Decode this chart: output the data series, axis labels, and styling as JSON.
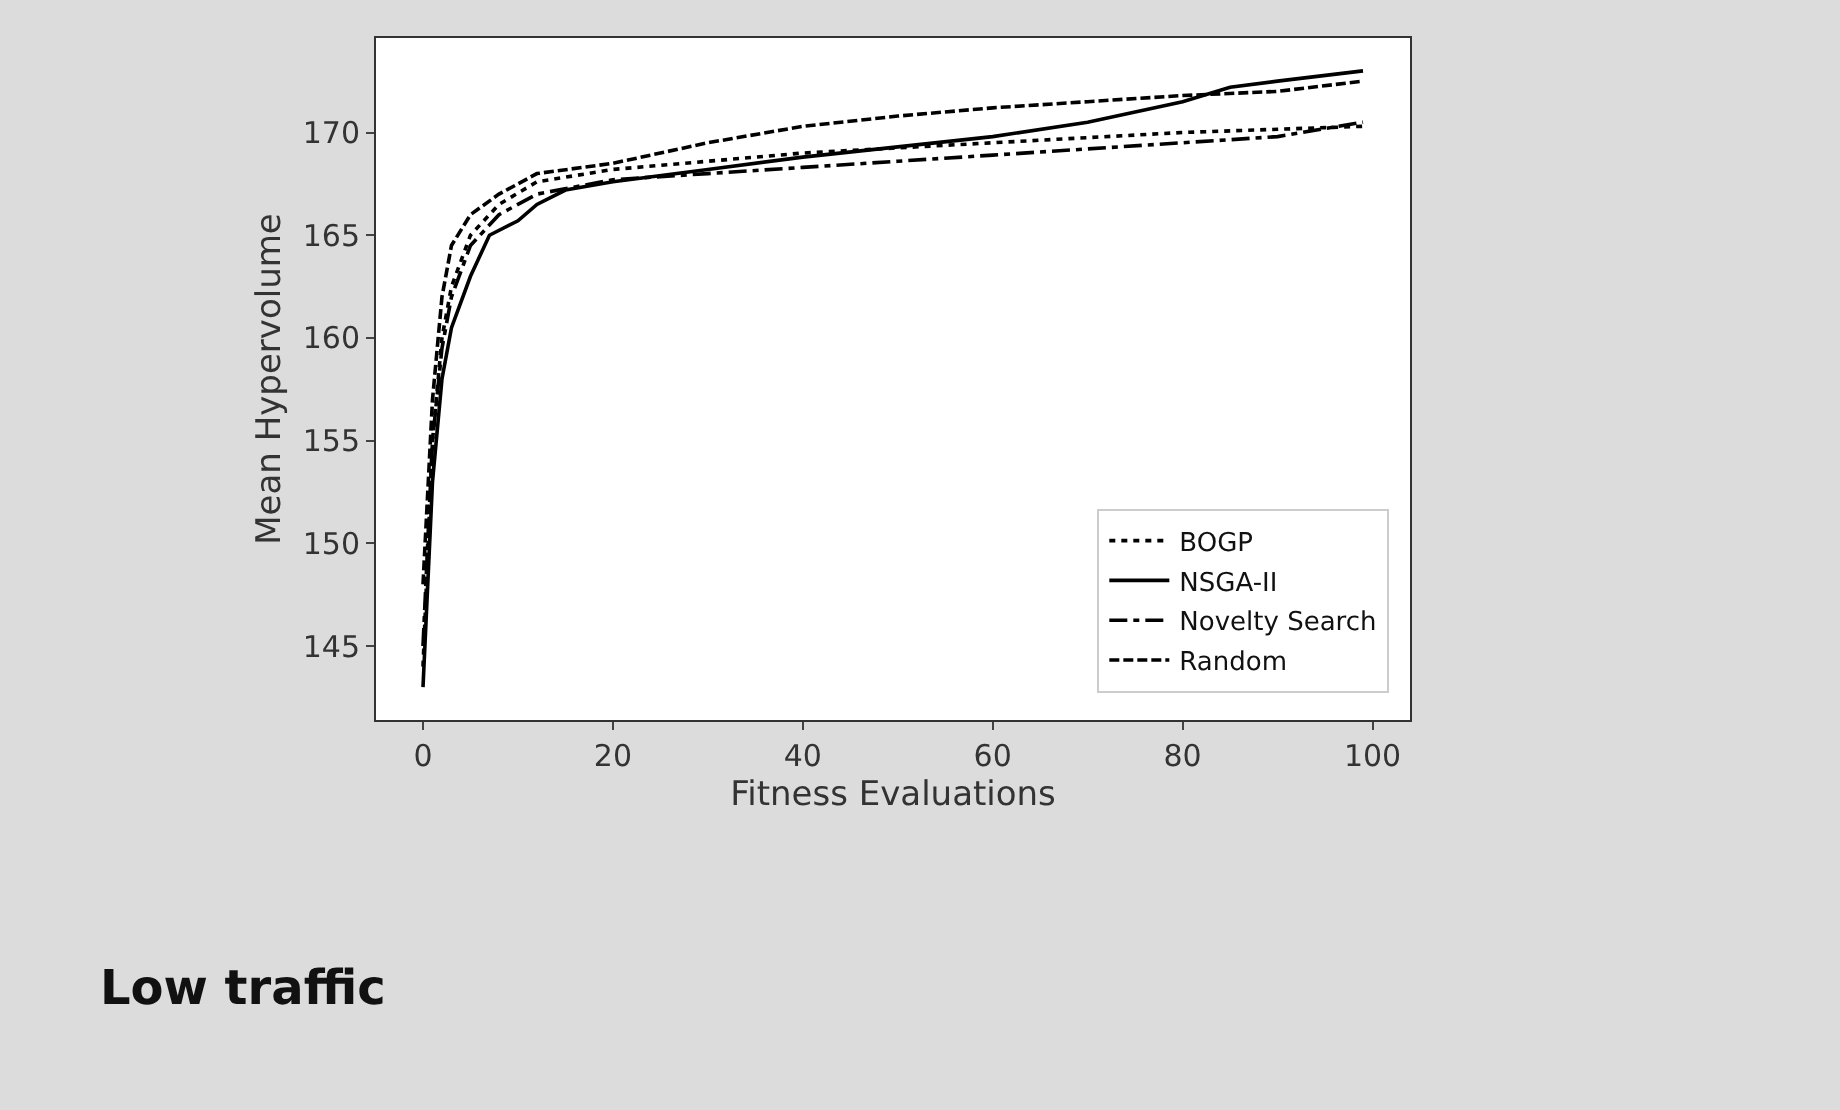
{
  "chart_data": {
    "type": "line",
    "xlabel": "Fitness Evaluations",
    "ylabel": "Mean Hypervolume",
    "xlim": [
      -4.95,
      103.95
    ],
    "xticks": [
      0,
      20,
      40,
      60,
      80,
      100
    ],
    "ylim": [
      141.4,
      174.6
    ],
    "yticks": [
      145,
      150,
      155,
      160,
      165,
      170
    ],
    "grid": false,
    "legend": "bottom right",
    "marker": "none",
    "annotations": [
      "Low traffic"
    ],
    "series": [
      {
        "name": "BOGP",
        "color": "#000000",
        "line_style": "dotted",
        "x": [
          0,
          1,
          2,
          3,
          5,
          8,
          12,
          20,
          30,
          40,
          60,
          80,
          99
        ],
        "values": [
          144,
          155,
          160,
          162.5,
          165,
          166.5,
          167.6,
          168.2,
          168.6,
          169,
          169.5,
          170,
          170.3
        ]
      },
      {
        "name": "NSGA-II",
        "color": "#000000",
        "line_style": "solid",
        "x": [
          0,
          1,
          2,
          3,
          5,
          7,
          10,
          12,
          15,
          20,
          30,
          40,
          50,
          60,
          70,
          80,
          85,
          90,
          99
        ],
        "values": [
          143,
          153,
          158,
          160.5,
          163,
          165,
          165.7,
          166.5,
          167.2,
          167.6,
          168.2,
          168.8,
          169.3,
          169.8,
          170.5,
          171.5,
          172.2,
          172.5,
          173
        ]
      },
      {
        "name": "Novelty Search",
        "color": "#000000",
        "line_style": "dashdot",
        "x": [
          0,
          1,
          2,
          3,
          5,
          8,
          12,
          20,
          30,
          40,
          50,
          60,
          70,
          80,
          90,
          99
        ],
        "values": [
          145,
          155,
          159.5,
          162,
          164.5,
          166,
          167,
          167.7,
          168,
          168.3,
          168.6,
          168.9,
          169.2,
          169.5,
          169.8,
          170.5
        ]
      },
      {
        "name": "Random",
        "color": "#000000",
        "line_style": "dashed",
        "x": [
          0,
          1,
          2,
          3,
          5,
          8,
          12,
          20,
          30,
          40,
          50,
          60,
          70,
          80,
          90,
          99
        ],
        "values": [
          148,
          157,
          162,
          164.5,
          166,
          167,
          168,
          168.5,
          169.5,
          170.3,
          170.8,
          171.2,
          171.5,
          171.8,
          172,
          172.5
        ]
      }
    ]
  }
}
